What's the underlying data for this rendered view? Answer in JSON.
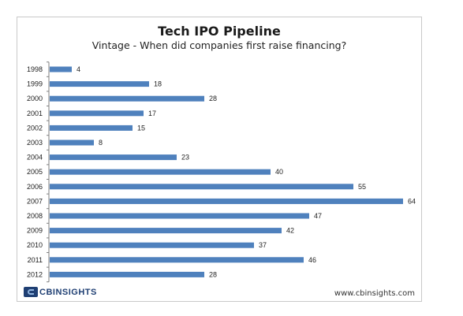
{
  "chart_data": {
    "type": "bar",
    "orientation": "horizontal",
    "title": "Tech IPO Pipeline",
    "subtitle": "Vintage - When did companies first raise financing?",
    "categories": [
      "1998",
      "1999",
      "2000",
      "2001",
      "2002",
      "2003",
      "2004",
      "2005",
      "2006",
      "2007",
      "2008",
      "2009",
      "2010",
      "2011",
      "2012"
    ],
    "values": [
      4,
      18,
      28,
      17,
      15,
      8,
      23,
      40,
      55,
      64,
      47,
      42,
      37,
      46,
      28
    ],
    "xlim": [
      0,
      64
    ],
    "xaxis_visible": false,
    "grid": false,
    "legend": "none",
    "data_labels": true
  },
  "colors": {
    "bar": "#4f81bd",
    "axis": "#7f7f7f"
  },
  "footer": {
    "logo_text": "CBINSIGHTS",
    "url": "www.cbinsights.com"
  }
}
